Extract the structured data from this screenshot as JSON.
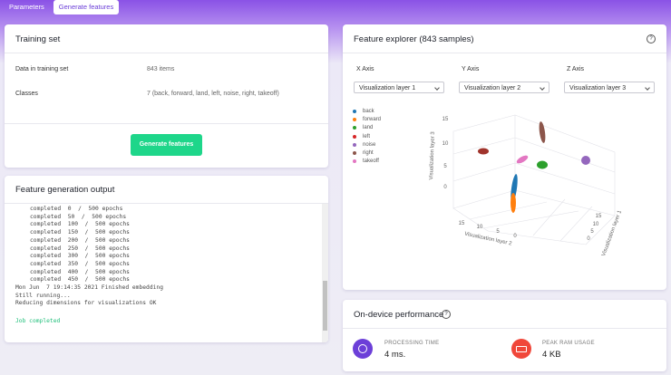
{
  "tabs": [
    "Parameters",
    "Generate features"
  ],
  "training_set": {
    "title": "Training set",
    "rows": [
      {
        "label": "Data in training set",
        "value": "843 items"
      },
      {
        "label": "Classes",
        "value": "7 (back, forward, land, left, noise, right, takeoff)"
      }
    ],
    "button": "Generate features"
  },
  "output": {
    "title": "Feature generation output",
    "lines": [
      "completed  0  /  500 epochs",
      "completed  50  /  500 epochs",
      "completed  100  /  500 epochs",
      "completed  150  /  500 epochs",
      "completed  200  /  500 epochs",
      "completed  250  /  500 epochs",
      "completed  300  /  500 epochs",
      "completed  350  /  500 epochs",
      "completed  400  /  500 epochs",
      "completed  450  /  500 epochs",
      "Mon Jun  7 19:14:35 2021 Finished embedding",
      "Still running...",
      "Reducing dimensions for visualizations OK"
    ],
    "status": "Job completed"
  },
  "explorer": {
    "title": "Feature explorer (843 samples)",
    "axes": [
      {
        "label": "X Axis",
        "selected": "Visualization layer 1"
      },
      {
        "label": "Y Axis",
        "selected": "Visualization layer 2"
      },
      {
        "label": "Z Axis",
        "selected": "Visualization layer 3"
      }
    ],
    "legend": [
      {
        "name": "back",
        "color": "#1f77b4"
      },
      {
        "name": "forward",
        "color": "#ff7f0e"
      },
      {
        "name": "land",
        "color": "#2ca02c"
      },
      {
        "name": "left",
        "color": "#d62728"
      },
      {
        "name": "noise",
        "color": "#9467bd"
      },
      {
        "name": "right",
        "color": "#8c564b"
      },
      {
        "name": "takeoff",
        "color": "#e377c2"
      }
    ],
    "axis_titles": [
      "Visualization layer 3",
      "Visualization layer 2",
      "Visualization layer 1"
    ],
    "z_ticks": [
      "15",
      "10",
      "5",
      "0"
    ],
    "y_ticks": [
      "15",
      "10",
      "5",
      "0"
    ],
    "x_ticks": [
      "15",
      "10",
      "5",
      "0"
    ]
  },
  "performance": {
    "title": "On-device performance",
    "metrics": [
      {
        "label": "PROCESSING TIME",
        "value": "4 ms."
      },
      {
        "label": "PEAK RAM USAGE",
        "value": "4 KB"
      }
    ]
  }
}
